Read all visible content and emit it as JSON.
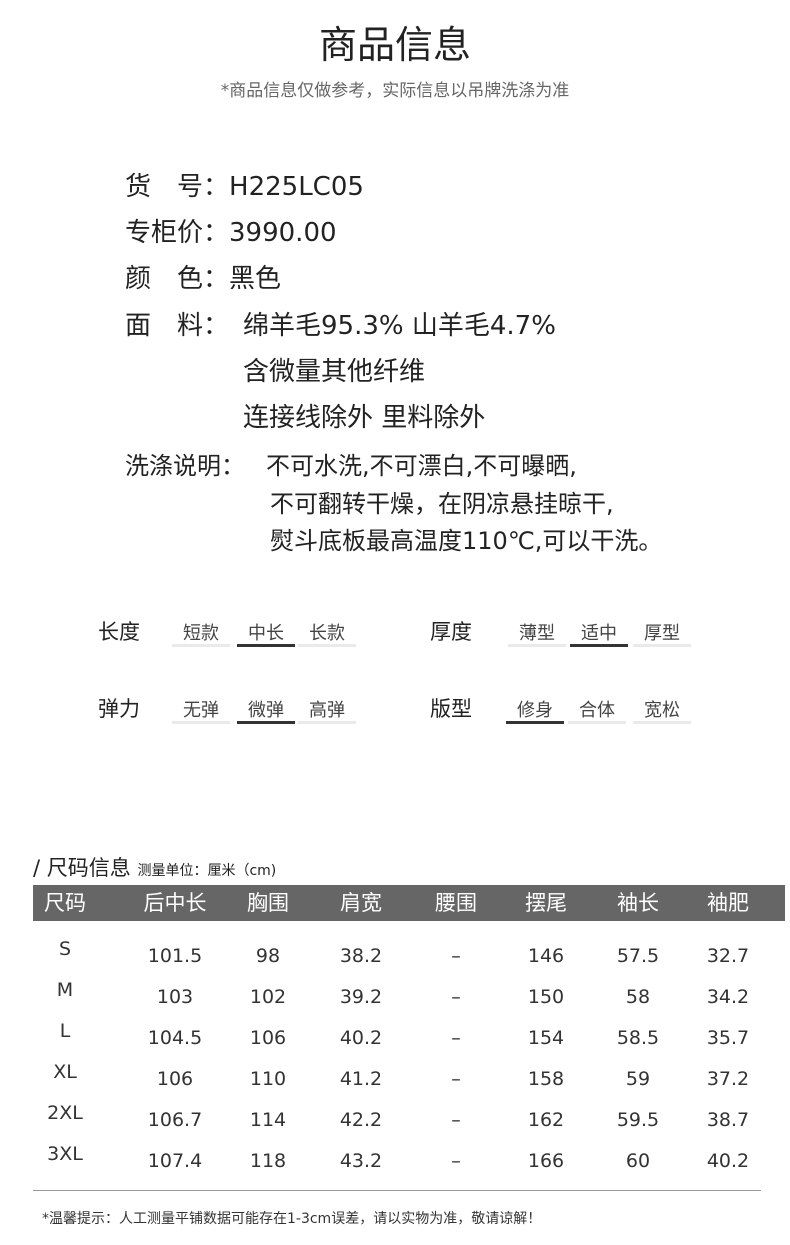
{
  "title": "商品信息",
  "subtitle": "*商品信息仅做参考，实际信息以吊牌洗涤为准",
  "info": {
    "item_no": {
      "label": "货　号：",
      "value": "H225LC05"
    },
    "price": {
      "label": "专柜价：",
      "value": "3990.00"
    },
    "color": {
      "label": "颜　色：",
      "value": "黑色"
    },
    "fabric": {
      "label": "面　料：",
      "lines": [
        "绵羊毛95.3% 山羊毛4.7%",
        "含微量其他纤维",
        "连接线除外 里料除外"
      ]
    },
    "wash": {
      "label": "洗涤说明：",
      "lines": [
        "不可水洗,不可漂白,不可曝晒,",
        "不可翻转干燥，在阴凉悬挂晾干,",
        "熨斗底板最高温度110℃,可以干洗。"
      ]
    }
  },
  "attributes": [
    {
      "label": "长度",
      "options": [
        "短款",
        "中长",
        "长款"
      ],
      "selected": 1
    },
    {
      "label": "厚度",
      "options": [
        "薄型",
        "适中",
        "厚型"
      ],
      "selected": 1
    },
    {
      "label": "弹力",
      "options": [
        "无弹",
        "微弹",
        "高弹"
      ],
      "selected": 1
    },
    {
      "label": "版型",
      "options": [
        "修身",
        "合体",
        "宽松"
      ],
      "selected": 0
    }
  ],
  "size_section": {
    "title": "/ 尺码信息",
    "unit": "测量单位：厘米（cm)"
  },
  "size_table": {
    "headers": [
      "尺码",
      "后中长",
      "胸围",
      "肩宽",
      "腰围",
      "摆尾",
      "袖长",
      "袖肥"
    ],
    "rows": [
      [
        "S",
        "101.5",
        "98",
        "38.2",
        "–",
        "146",
        "57.5",
        "32.7"
      ],
      [
        "M",
        "103",
        "102",
        "39.2",
        "–",
        "150",
        "58",
        "34.2"
      ],
      [
        "L",
        "104.5",
        "106",
        "40.2",
        "–",
        "154",
        "58.5",
        "35.7"
      ],
      [
        "XL",
        "106",
        "110",
        "41.2",
        "–",
        "158",
        "59",
        "37.2"
      ],
      [
        "2XL",
        "106.7",
        "114",
        "42.2",
        "–",
        "162",
        "59.5",
        "38.7"
      ],
      [
        "3XL",
        "107.4",
        "118",
        "43.2",
        "–",
        "166",
        "60",
        "40.2"
      ]
    ]
  },
  "note": "*温馨提示：人工测量平铺数据可能存在1-3cm误差，请以实物为准，敬请谅解！",
  "colors": {
    "header_bg": "#666666",
    "selected_bar": "#333333",
    "bar": "#eaeaea"
  }
}
